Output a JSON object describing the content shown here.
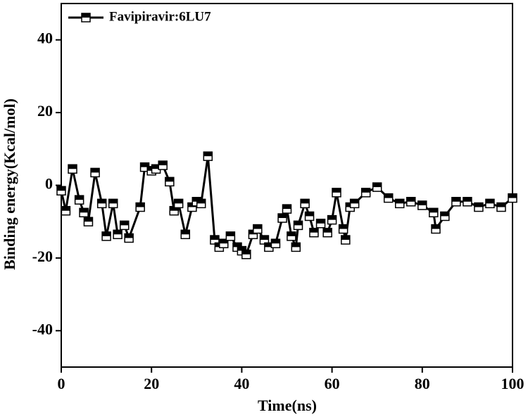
{
  "chart_data": {
    "type": "line",
    "xlabel": "Time(ns)",
    "ylabel": "Binding energy(Kcal/mol)",
    "x": [
      0,
      1,
      2.5,
      4,
      5,
      6,
      7.5,
      9,
      10,
      11.5,
      12.5,
      14,
      15,
      17.5,
      18.5,
      20,
      21,
      22.5,
      24,
      25,
      26,
      27.5,
      29,
      30,
      31,
      32.5,
      34,
      35,
      36,
      37.5,
      39,
      40,
      41,
      42.5,
      43.5,
      45,
      46,
      47.5,
      49,
      50,
      51,
      52,
      52.5,
      54,
      55,
      56,
      57.5,
      59,
      60,
      61,
      62.5,
      63,
      64,
      65,
      67.5,
      70,
      72.5,
      75,
      77.5,
      80,
      82.5,
      83,
      85,
      87.5,
      90,
      92.5,
      95,
      97.5,
      100
    ],
    "series": [
      {
        "name": "Favipiravir:6LU7",
        "color": "#000000",
        "values": [
          -1.5,
          -7,
          4.5,
          -4,
          -7.5,
          -10,
          3.5,
          -5,
          -14,
          -5,
          -13.5,
          -11,
          -14.5,
          -6,
          5,
          4,
          4.5,
          5.5,
          1,
          -7,
          -5,
          -13.5,
          -6,
          -4.5,
          -5,
          8,
          -15,
          -17,
          -16,
          -14,
          -17,
          -18,
          -19,
          -13.5,
          -12,
          -15,
          -17,
          -16,
          -9,
          -6.5,
          -14,
          -17,
          -11,
          -5,
          -8.5,
          -13,
          -10.5,
          -13,
          -9.5,
          -2,
          -12,
          -15,
          -6,
          -5,
          -2,
          -0.5,
          -3.5,
          -5,
          -4.5,
          -5.5,
          -7.5,
          -12,
          -8.5,
          -4.5,
          -4.5,
          -6,
          -5,
          -6,
          -3.5
        ]
      }
    ],
    "xlim": [
      0,
      100
    ],
    "xticks": [
      0,
      20,
      40,
      60,
      80,
      100
    ],
    "ylim": [
      -50,
      50
    ],
    "yticks": [
      -40,
      -20,
      0,
      20,
      40
    ],
    "legend": "upper left",
    "grid": false
  }
}
